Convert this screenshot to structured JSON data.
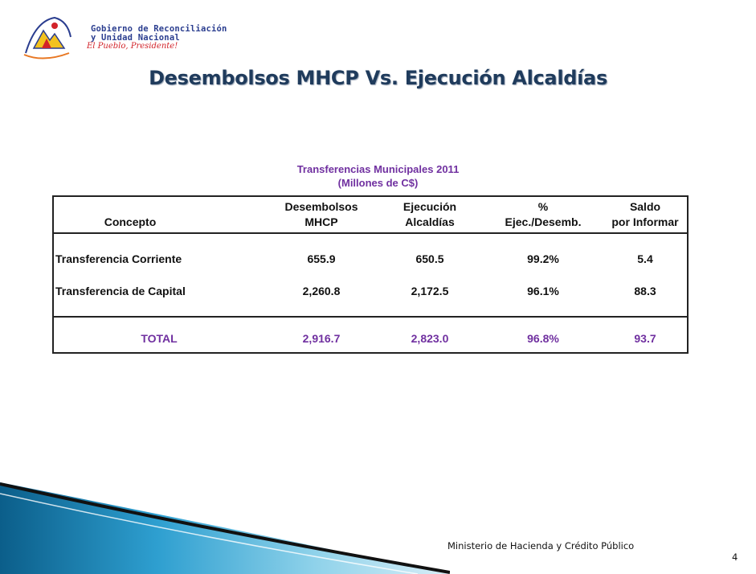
{
  "logo": {
    "line1": "Gobierno de Reconciliación",
    "line2": "y Unidad Nacional",
    "slogan": "El Pueblo, Presidente!"
  },
  "slide": {
    "title": "Desembolsos MHCP Vs. Ejecución Alcaldías"
  },
  "table": {
    "caption_line1": "Transferencias Municipales 2011",
    "caption_line2": "(Millones de C$)",
    "headers": {
      "concepto": "Concepto",
      "desembolsos_1": "Desembolsos",
      "desembolsos_2": "MHCP",
      "ejecucion_1": "Ejecución",
      "ejecucion_2": "Alcaldías",
      "pct_1": "%",
      "pct_2": "Ejec./Desemb.",
      "saldo_1": "Saldo",
      "saldo_2": "por Informar"
    },
    "rows": [
      {
        "concepto": "Transferencia Corriente",
        "desembolsos": "655.9",
        "ejecucion": "650.5",
        "pct": "99.2%",
        "saldo": "5.4"
      },
      {
        "concepto": "Transferencia de Capital",
        "desembolsos": "2,260.8",
        "ejecucion": "2,172.5",
        "pct": "96.1%",
        "saldo": "88.3"
      }
    ],
    "total": {
      "concepto": "TOTAL",
      "desembolsos": "2,916.7",
      "ejecucion": "2,823.0",
      "pct": "96.8%",
      "saldo": "93.7"
    }
  },
  "footer": {
    "ministry": "Ministerio de Hacienda y Crédito Público",
    "page_number": "4"
  },
  "colors": {
    "title": "#1f3b5c",
    "caption": "#7030a0",
    "swoosh_dark": "#0b5e8a",
    "swoosh_light": "#4fb3d9"
  }
}
